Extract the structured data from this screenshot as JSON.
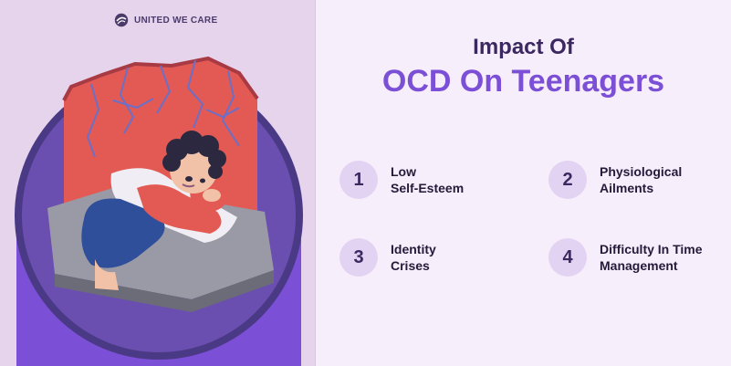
{
  "brand": {
    "name": "UNITED WE CARE",
    "logo_icon": "globe-logo-icon"
  },
  "heading": {
    "line1": "Impact Of",
    "line2": "OCD On Teenagers"
  },
  "items": [
    {
      "number": "1",
      "line1": "Low",
      "line2": "Self-Esteem"
    },
    {
      "number": "2",
      "line1": "Physiological",
      "line2": "Ailments"
    },
    {
      "number": "3",
      "line1": "Identity",
      "line2": "Crises"
    },
    {
      "number": "4",
      "line1": "Difficulty In Time",
      "line2": "Management"
    }
  ],
  "colors": {
    "accent": "#7b4fd6",
    "heading": "#3b2860",
    "number_circle": "#e3d3f2",
    "left_background": "#e6d3ec",
    "right_background": "#f7eefb"
  }
}
